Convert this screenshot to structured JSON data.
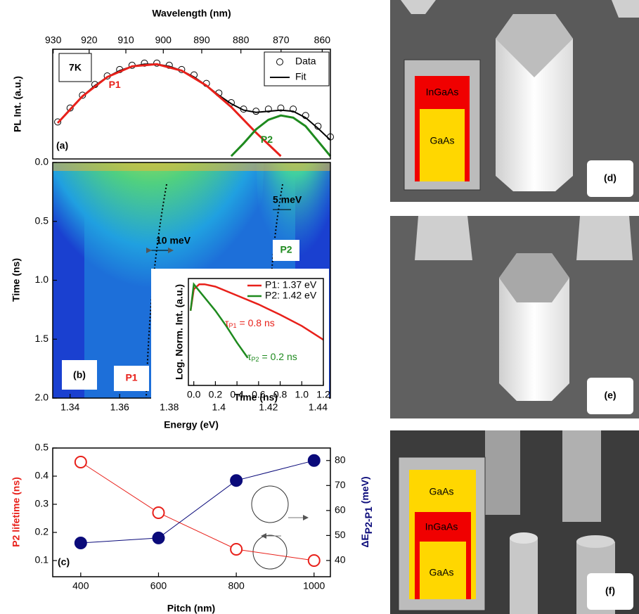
{
  "chart_data": [
    {
      "type": "line",
      "x2label": "Wavelength (nm)",
      "ylabel": "PL Int. (a.u.)",
      "panel_label": "(a)",
      "annotation": "7K",
      "xlim": [
        1.333,
        1.445
      ],
      "ylim": [
        0,
        1
      ],
      "x2ticks": [
        {
          "value": 1.3332,
          "label": "930"
        },
        {
          "value": 1.3477,
          "label": "920"
        },
        {
          "value": 1.3625,
          "label": "910"
        },
        {
          "value": 1.3776,
          "label": "900"
        },
        {
          "value": 1.3931,
          "label": "890"
        },
        {
          "value": 1.4089,
          "label": "880"
        },
        {
          "value": 1.4251,
          "label": "870"
        },
        {
          "value": 1.4417,
          "label": "860"
        }
      ],
      "series": [
        {
          "name": "Data",
          "color": "#000000",
          "style": "markers",
          "legend": true,
          "x": [
            1.335,
            1.34,
            1.345,
            1.35,
            1.355,
            1.36,
            1.365,
            1.37,
            1.375,
            1.38,
            1.385,
            1.39,
            1.395,
            1.4,
            1.405,
            1.41,
            1.415,
            1.42,
            1.425,
            1.43,
            1.435,
            1.44,
            1.445
          ],
          "values": [
            0.32,
            0.45,
            0.57,
            0.67,
            0.75,
            0.81,
            0.85,
            0.87,
            0.87,
            0.85,
            0.81,
            0.76,
            0.68,
            0.59,
            0.5,
            0.44,
            0.42,
            0.44,
            0.45,
            0.44,
            0.38,
            0.28,
            0.18
          ]
        },
        {
          "name": "Fit",
          "color": "#000000",
          "style": "line",
          "legend": true,
          "x": [
            1.335,
            1.34,
            1.345,
            1.35,
            1.355,
            1.36,
            1.365,
            1.37,
            1.375,
            1.38,
            1.385,
            1.39,
            1.395,
            1.4,
            1.405,
            1.41,
            1.415,
            1.42,
            1.425,
            1.43,
            1.435,
            1.44,
            1.445
          ],
          "values": [
            0.31,
            0.44,
            0.56,
            0.66,
            0.74,
            0.8,
            0.84,
            0.86,
            0.86,
            0.84,
            0.8,
            0.74,
            0.66,
            0.57,
            0.49,
            0.43,
            0.41,
            0.42,
            0.43,
            0.42,
            0.36,
            0.26,
            0.15
          ]
        },
        {
          "name": "P1",
          "color": "#e8201a",
          "style": "line",
          "legend": false,
          "x": [
            1.335,
            1.345,
            1.355,
            1.365,
            1.375,
            1.385,
            1.395,
            1.405,
            1.415,
            1.425
          ],
          "values": [
            0.31,
            0.56,
            0.74,
            0.84,
            0.86,
            0.8,
            0.66,
            0.46,
            0.22,
            0
          ]
        },
        {
          "name": "P2",
          "color": "#1e8a1e",
          "style": "line",
          "legend": false,
          "x": [
            1.405,
            1.41,
            1.415,
            1.42,
            1.425,
            1.43,
            1.435,
            1.44,
            1.445
          ],
          "values": [
            0,
            0.12,
            0.25,
            0.34,
            0.38,
            0.36,
            0.28,
            0.14,
            0
          ]
        }
      ]
    },
    {
      "type": "heatmap",
      "xlabel": "Energy (eV)",
      "ylabel": "Time (ns)",
      "panel_label": "(b)",
      "xlim": [
        1.333,
        1.445
      ],
      "ylim": [
        0,
        2
      ],
      "xticks": [
        1.34,
        1.36,
        1.38,
        1.4,
        1.42,
        1.44
      ],
      "yticks": [
        {
          "value": 0,
          "label": "0.0"
        },
        0.5,
        {
          "value": 1,
          "label": "1.0"
        },
        1.5,
        {
          "value": 2,
          "label": "2.0"
        }
      ],
      "annotations": {
        "width1": "10 meV",
        "width2": "5 meV",
        "peak2": "P2",
        "peak1": "P1"
      }
    },
    {
      "type": "line",
      "xlabel": "Time (ns)",
      "ylabel": "Log. Norm. Int. (a.u.)",
      "log_y": true,
      "xlim": [
        -0.05,
        1.2
      ],
      "ylim": [
        0.01,
        1.3
      ],
      "xticks": [
        {
          "value": 0,
          "label": "0.0"
        },
        0.2,
        0.4,
        0.6,
        0.8,
        {
          "value": 1,
          "label": "1.0"
        },
        1.2
      ],
      "series": [
        {
          "name": "P1: 1.37 eV",
          "color": "#e8201a",
          "style": "line",
          "legend": true,
          "x": [
            -0.03,
            0,
            0.05,
            0.1,
            0.2,
            0.4,
            0.6,
            0.8,
            1.0,
            1.2
          ],
          "values": [
            0.3,
            0.8,
            1,
            1,
            0.9,
            0.6,
            0.4,
            0.25,
            0.15,
            0.08
          ]
        },
        {
          "name": "P2: 1.42 eV",
          "color": "#1e8a1e",
          "style": "line",
          "legend": true,
          "x": [
            -0.03,
            0,
            0.1,
            0.2,
            0.3,
            0.4,
            0.5
          ],
          "values": [
            0.3,
            1,
            0.55,
            0.3,
            0.15,
            0.07,
            0.035
          ]
        }
      ],
      "taus": [
        {
          "symbol": "τ",
          "sub": "P1",
          "text": "= 0.8 ns",
          "color": "#e8201a"
        },
        {
          "symbol": "τ",
          "sub": "P2",
          "text": "= 0.2 ns",
          "color": "#1e8a1e"
        }
      ]
    },
    {
      "type": "line",
      "xlabel": "Pitch (nm)",
      "ylabel": "P2 lifetime (ns)",
      "y2label": {
        "main": "ΔE",
        "sub": "P2-P1",
        "unit": "(meV)"
      },
      "panel_label": "(c)",
      "xlim": [
        328,
        1042
      ],
      "ylim": [
        0.0425,
        0.5
      ],
      "y2lim": [
        33.5,
        85
      ],
      "xticks": [
        400,
        600,
        800,
        1000
      ],
      "yticks": [
        0.1,
        0.2,
        0.3,
        0.4,
        0.5
      ],
      "y2ticks": [
        40,
        50,
        60,
        70,
        80
      ],
      "x": [
        400,
        600,
        800,
        1000
      ],
      "series": [
        {
          "color": "#e8201a",
          "marker": "open",
          "values": [
            0.45,
            0.27,
            0.14,
            0.1
          ]
        },
        {
          "color": "#0a0a7a",
          "marker": "filled",
          "axis": "y2",
          "values": [
            47,
            49,
            72,
            80
          ]
        }
      ]
    }
  ],
  "panels": {
    "d": {
      "label": "(d)",
      "inset": [
        "InGaAs",
        "GaAs"
      ]
    },
    "e": {
      "label": "(e)"
    },
    "f": {
      "label": "(f)",
      "inset": [
        "GaAs",
        "InGaAs",
        "GaAs"
      ]
    }
  }
}
